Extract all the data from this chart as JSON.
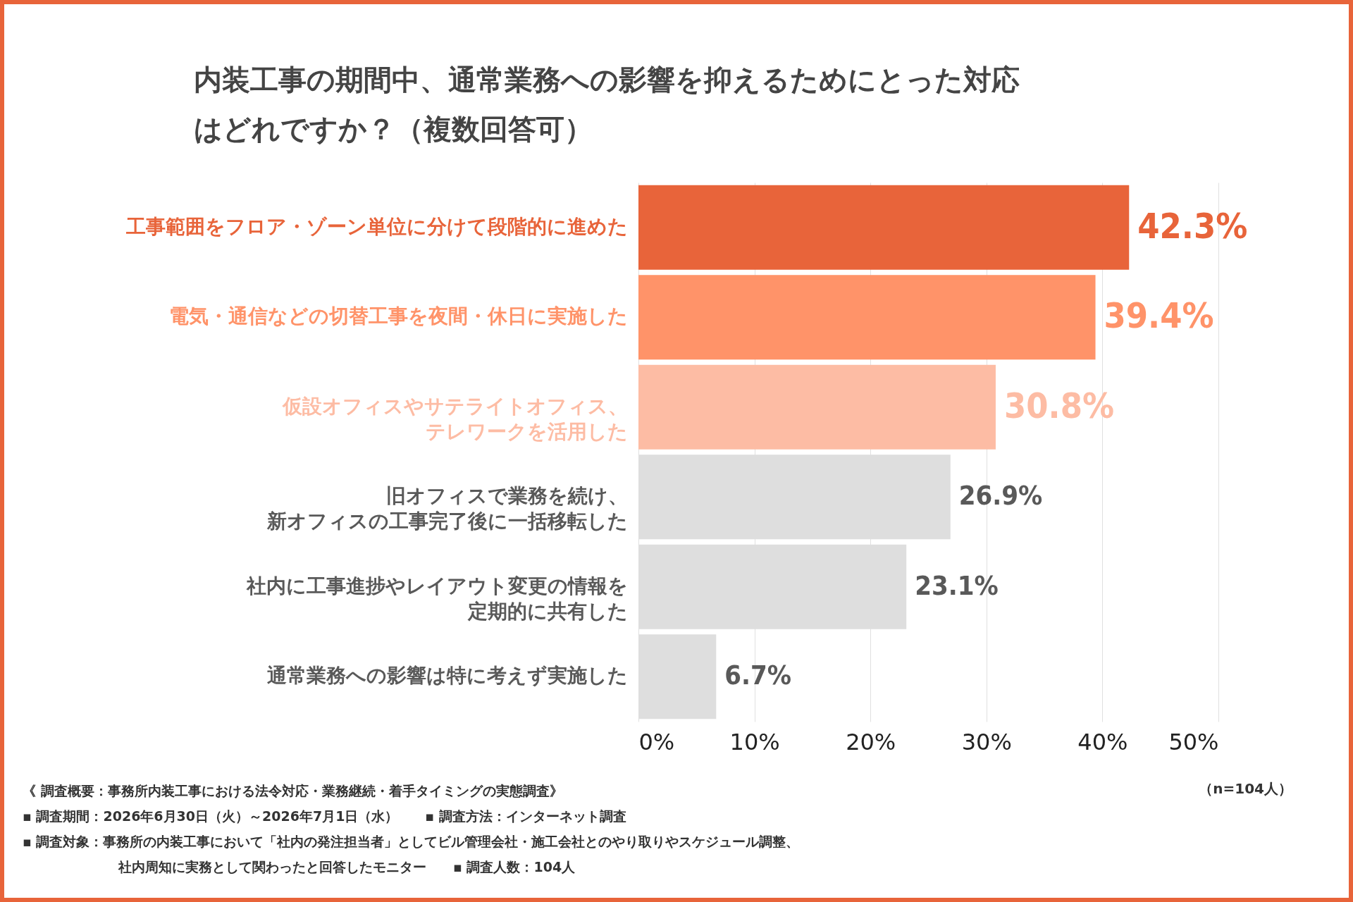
{
  "chart_data": {
    "type": "bar",
    "orientation": "horizontal",
    "title": "内装工事の期間中、通常業務への影響を抑えるためにとった対応はどれですか？（複数回答可）",
    "categories": [
      "工事範囲をフロア・ゾーン単位に分けて段階的に進めた",
      "電気・通信などの切替工事を夜間・休日に実施した",
      "仮設オフィスやサテライトオフィス、テレワークを活用した",
      "旧オフィスで業務を続け、新オフィスの工事完了後に一括移転した",
      "社内に工事進捗やレイアウト変更の情報を定期的に共有した",
      "通常業務への影響は特に考えず実施した"
    ],
    "values": [
      42.3,
      39.4,
      30.8,
      26.9,
      23.1,
      6.7
    ],
    "colors": [
      "#e8643a",
      "#ff9369",
      "#fdbca4",
      "#dedede",
      "#dedede",
      "#dedede"
    ],
    "value_labels": [
      "42.3%",
      "39.4%",
      "30.8%",
      "26.9%",
      "23.1%",
      "6.7%"
    ],
    "xlim": [
      0,
      50
    ],
    "xticks": [
      {
        "value": 0,
        "label": "0%"
      },
      {
        "value": 10,
        "label": "10%"
      },
      {
        "value": 20,
        "label": "20%"
      },
      {
        "value": 30,
        "label": "30%"
      },
      {
        "value": 40,
        "label": "40%"
      },
      {
        "value": 50,
        "label": "50%"
      }
    ],
    "grid": "x",
    "annotations": [
      "（n=104人）",
      "《 調査概要：事務所内装工事における法令対応・業務継続・着手タイミングの実態調査》",
      "▪ 調査期間：2026年6月30日（火）～2026年7月1日（水）　　▪ 調査方法：インターネット調査",
      "▪ 調査対象：事務所の内装工事において「社内の発注担当者」としてビル管理会社・施工会社とのやり取りやスケジュール調整、",
      "社内周知に実務として関わったと回答したモニター　　▪ 調査人数：104人"
    ]
  }
}
